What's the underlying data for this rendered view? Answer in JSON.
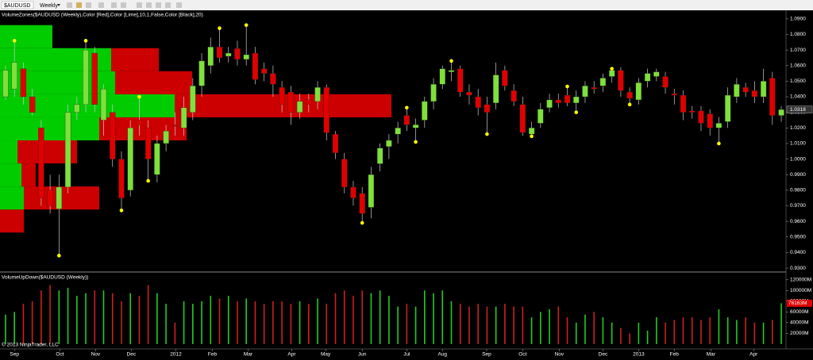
{
  "toolbar": {
    "symbol": "$AUDUSD",
    "interval": "Weekly"
  },
  "copyright": "© 2013 NinjaTrader, LLC",
  "chart_data": [
    {
      "type": "candlestick",
      "title": "VolumeZones($AUDUSD (Weekly),Color [Red],Color [Lime],10,1,False,Color [Black],20)",
      "open": [
        1.04,
        1.045,
        1.058,
        1.04,
        1.02,
        0.98,
        0.968,
        0.982,
        1.03,
        1.035,
        1.068,
        1.025,
        1.03,
        1.0,
        0.98,
        1.025,
        1.02,
        0.99,
        1.01,
        1.022,
        1.02,
        1.03,
        1.047,
        1.06,
        1.072,
        1.066,
        1.071,
        1.064,
        1.068,
        1.058,
        1.055,
        1.046,
        1.043,
        1.03,
        1.038,
        1.037,
        1.046,
        1.016,
        1.0,
        0.982,
        0.978,
        0.969,
        0.997,
        1.008,
        1.016,
        1.028,
        1.02,
        1.025,
        1.037,
        1.048,
        1.056,
        1.058,
        1.043,
        1.04,
        1.035,
        1.036,
        1.057,
        1.044,
        1.035,
        1.016,
        1.023,
        1.033,
        1.038,
        1.041,
        1.036,
        1.04,
        1.046,
        1.047,
        1.053,
        1.057,
        1.043,
        1.038,
        1.05,
        1.053,
        1.053,
        1.042,
        1.041,
        1.031,
        1.031,
        1.029,
        1.02,
        1.024,
        1.04,
        1.046,
        1.044,
        1.04,
        1.052,
        1.028
      ],
      "high": [
        1.06,
        1.076,
        1.062,
        1.045,
        1.025,
        0.99,
        0.99,
        1.035,
        1.04,
        1.076,
        1.072,
        1.048,
        1.035,
        1.005,
        1.025,
        1.04,
        1.025,
        1.015,
        1.022,
        1.03,
        1.04,
        1.052,
        1.068,
        1.078,
        1.084,
        1.072,
        1.076,
        1.086,
        1.072,
        1.062,
        1.06,
        1.05,
        1.047,
        1.042,
        1.042,
        1.05,
        1.048,
        1.018,
        1.004,
        0.986,
        0.982,
        0.995,
        1.01,
        1.016,
        1.024,
        1.033,
        1.026,
        1.04,
        1.052,
        1.06,
        1.063,
        1.06,
        1.048,
        1.045,
        1.04,
        1.062,
        1.06,
        1.048,
        1.04,
        1.024,
        1.036,
        1.042,
        1.042,
        1.0466,
        1.044,
        1.05,
        1.05,
        1.055,
        1.058,
        1.059,
        1.046,
        1.052,
        1.058,
        1.058,
        1.056,
        1.045,
        1.044,
        1.034,
        1.034,
        1.032,
        1.027,
        1.046,
        1.052,
        1.049,
        1.05,
        1.058,
        1.056,
        1.034
      ],
      "low": [
        1.038,
        1.04,
        1.035,
        1.028,
        0.97,
        0.965,
        0.938,
        0.978,
        1.025,
        1.03,
        1.03,
        1.015,
        0.995,
        0.967,
        0.976,
        1.015,
        0.986,
        0.985,
        1.005,
        1.015,
        1.015,
        1.025,
        1.04,
        1.055,
        1.062,
        1.062,
        1.06,
        1.06,
        1.048,
        1.05,
        1.04,
        1.03,
        1.022,
        1.026,
        1.03,
        1.032,
        1.012,
        1.0,
        0.978,
        0.97,
        0.959,
        0.962,
        0.992,
        1.0,
        1.01,
        1.018,
        1.011,
        1.02,
        1.032,
        1.045,
        1.05,
        1.04,
        1.035,
        1.028,
        1.016,
        1.032,
        1.044,
        1.034,
        1.015,
        1.0146,
        1.02,
        1.03,
        1.033,
        1.034,
        1.03,
        1.036,
        1.042,
        1.043,
        1.049,
        1.04,
        1.035,
        1.035,
        1.046,
        1.05,
        1.042,
        1.035,
        1.025,
        1.026,
        1.018,
        1.015,
        1.01,
        1.02,
        1.036,
        1.04,
        1.036,
        1.036,
        1.022,
        1.024
      ],
      "close": [
        1.057,
        1.062,
        1.04,
        1.03,
        0.975,
        0.97,
        0.982,
        1.03,
        1.035,
        1.07,
        1.035,
        1.045,
        1.0,
        0.975,
        1.02,
        1.022,
        1.0,
        1.01,
        1.018,
        1.021,
        1.033,
        1.047,
        1.063,
        1.072,
        1.065,
        1.068,
        1.064,
        1.067,
        1.051,
        1.055,
        1.048,
        1.035,
        1.03,
        1.037,
        1.035,
        1.046,
        1.017,
        1.004,
        0.982,
        0.975,
        0.965,
        0.99,
        1.007,
        1.012,
        1.02,
        1.022,
        1.022,
        1.037,
        1.048,
        1.058,
        1.057,
        1.043,
        1.041,
        1.033,
        1.03,
        1.054,
        1.047,
        1.037,
        1.017,
        1.02,
        1.032,
        1.038,
        1.036,
        1.036,
        1.04,
        1.047,
        1.045,
        1.052,
        1.057,
        1.044,
        1.039,
        1.049,
        1.055,
        1.056,
        1.046,
        1.041,
        1.03,
        1.03,
        1.023,
        1.02,
        1.023,
        1.041,
        1.048,
        1.043,
        1.04,
        1.05,
        1.028,
        1.0318
      ],
      "last_label": "1.0318",
      "up_color": "#7ee03a",
      "down_color": "#e00000",
      "ylim": [
        0.928,
        1.095
      ],
      "yticks": [
        {
          "value": 0.93,
          "label": "0.9300"
        },
        {
          "value": 0.94,
          "label": "0.9400"
        },
        {
          "value": 0.95,
          "label": "0.9500"
        },
        {
          "value": 0.96,
          "label": "0.9600"
        },
        {
          "value": 0.97,
          "label": "0.9700"
        },
        {
          "value": 0.98,
          "label": "0.9800"
        },
        {
          "value": 0.99,
          "label": "0.9900"
        },
        {
          "value": 1.0,
          "label": "1.0000"
        },
        {
          "value": 1.01,
          "label": "1.0100"
        },
        {
          "value": 1.02,
          "label": "1.0200"
        },
        {
          "value": 1.03,
          "label": "1.0300"
        },
        {
          "value": 1.04,
          "label": "1.0400"
        },
        {
          "value": 1.05,
          "label": "1.0500"
        },
        {
          "value": 1.06,
          "label": "1.0600"
        },
        {
          "value": 1.07,
          "label": "1.0700"
        },
        {
          "value": 1.08,
          "label": "1.0800"
        },
        {
          "value": 1.09,
          "label": "1.0900"
        }
      ],
      "xlim": [
        -0.62,
        87.53
      ],
      "xticks": [
        {
          "value": 1.0,
          "label": "Sep"
        },
        {
          "value": 6.1,
          "label": "Oct"
        },
        {
          "value": 10.1,
          "label": "Nov"
        },
        {
          "value": 14.1,
          "label": "Dec"
        },
        {
          "value": 19.1,
          "label": "2012"
        },
        {
          "value": 23.2,
          "label": "Feb"
        },
        {
          "value": 27.2,
          "label": "Mar"
        },
        {
          "value": 32.1,
          "label": "Apr"
        },
        {
          "value": 35.9,
          "label": "May"
        },
        {
          "value": 40.0,
          "label": "Jun"
        },
        {
          "value": 45.0,
          "label": "Jul"
        },
        {
          "value": 49.0,
          "label": "Aug"
        },
        {
          "value": 53.96,
          "label": "Sep"
        },
        {
          "value": 58.0,
          "label": "Oct"
        },
        {
          "value": 62.1,
          "label": "Nov"
        },
        {
          "value": 67.0,
          "label": "Dec"
        },
        {
          "value": 71.0,
          "label": "2013"
        },
        {
          "value": 75.0,
          "label": "Feb"
        },
        {
          "value": 79.1,
          "label": "Mar"
        },
        {
          "value": 83.9,
          "label": "Apr"
        }
      ],
      "markers": [
        {
          "index": 1,
          "value": 1.076
        },
        {
          "index": 6,
          "value": 0.938
        },
        {
          "index": 9,
          "value": 1.076
        },
        {
          "index": 13,
          "value": 0.967
        },
        {
          "index": 15,
          "value": 1.04
        },
        {
          "index": 16,
          "value": 0.986
        },
        {
          "index": 24,
          "value": 1.084
        },
        {
          "index": 27,
          "value": 1.086
        },
        {
          "index": 40,
          "value": 0.959
        },
        {
          "index": 45,
          "value": 1.033
        },
        {
          "index": 46,
          "value": 1.011
        },
        {
          "index": 50,
          "value": 1.063
        },
        {
          "index": 54,
          "value": 1.016
        },
        {
          "index": 59,
          "value": 1.0146
        },
        {
          "index": 63,
          "value": 1.0466
        },
        {
          "index": 64,
          "value": 1.03
        },
        {
          "index": 68,
          "value": 1.058
        },
        {
          "index": 70,
          "value": 1.035
        },
        {
          "index": 80,
          "value": 1.01
        }
      ],
      "marker_color": "#ffff00",
      "volume_zones": {
        "range": [
          0.938,
          1.086
        ],
        "up": [
          0,
          0,
          30,
          27,
          22,
          125,
          220,
          145,
          140,
          66
        ],
        "down": [
          0,
          30,
          95,
          18,
          75,
          110,
          273,
          97,
          60,
          0
        ],
        "up_color": "#00cc00",
        "down_color": "#cc0000"
      }
    },
    {
      "type": "bar",
      "title": "VolumeUpDown($AUDUSD (Weekly))",
      "values": [
        55000,
        60000,
        75000,
        80000,
        100000,
        110000,
        100000,
        105000,
        90000,
        95000,
        100000,
        100000,
        95000,
        80000,
        95000,
        90000,
        110000,
        95000,
        75000,
        40000,
        80000,
        75000,
        80000,
        90000,
        85000,
        90000,
        80000,
        85000,
        80000,
        75000,
        80000,
        80000,
        75000,
        80000,
        75000,
        85000,
        75000,
        95000,
        100000,
        90000,
        100000,
        95000,
        100000,
        90000,
        70000,
        75000,
        70000,
        100000,
        95000,
        100000,
        80000,
        75000,
        70000,
        75000,
        70000,
        70000,
        75000,
        70000,
        70000,
        50000,
        60000,
        65000,
        70000,
        50000,
        40000,
        55000,
        60000,
        50000,
        40000,
        30000,
        20000,
        40000,
        25000,
        50000,
        40000,
        45000,
        50000,
        50000,
        45000,
        50000,
        65000,
        50000,
        45000,
        50000,
        40000,
        40000,
        45000,
        76163
      ],
      "last_label": "76163M",
      "ylim": [
        -9000,
        133000
      ],
      "yticks": [
        {
          "value": 20000,
          "label": "20000M"
        },
        {
          "value": 40000,
          "label": "40000M"
        },
        {
          "value": 60000,
          "label": "60000M"
        },
        {
          "value": 80000,
          "label": "80000M"
        },
        {
          "value": 100000,
          "label": "100000M"
        },
        {
          "value": 120000,
          "label": "120000M"
        }
      ]
    }
  ]
}
